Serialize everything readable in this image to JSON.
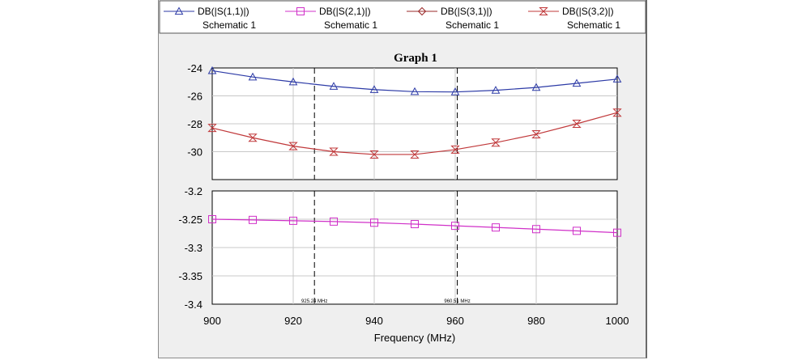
{
  "legend": [
    {
      "name": "DB(|S(1,1)|)",
      "sub": "Schematic 1",
      "color": "#2c3aa6",
      "marker": "triangle"
    },
    {
      "name": "DB(|S(2,1)|)",
      "sub": "Schematic 1",
      "color": "#d030c8",
      "marker": "square"
    },
    {
      "name": "DB(|S(3,1)|)",
      "sub": "Schematic 1",
      "color": "#9a2a2a",
      "marker": "diamond"
    },
    {
      "name": "DB(|S(3,2)|)",
      "sub": "Schematic 1",
      "color": "#c0383a",
      "marker": "hourglass"
    }
  ],
  "chart_data": [
    {
      "type": "line",
      "title": "Graph 1",
      "xlabel": "",
      "ylabel": "",
      "xlim": [
        900,
        1000
      ],
      "ylim": [
        -32,
        -24
      ],
      "xticks": [
        900,
        920,
        940,
        960,
        980,
        1000
      ],
      "yticks": [
        -24,
        -26,
        -28,
        -30,
        -32
      ],
      "ytick_labels": [
        "-24",
        "-26",
        "-28",
        "-30",
        ""
      ],
      "grid": true,
      "x": [
        900,
        910,
        920,
        930,
        940,
        950,
        960,
        970,
        980,
        990,
        1000
      ],
      "series": [
        {
          "name": "DB(|S(1,1)|)",
          "color": "#2c3aa6",
          "marker": "triangle",
          "values": [
            -24.2,
            -24.65,
            -25.0,
            -25.32,
            -25.55,
            -25.7,
            -25.72,
            -25.6,
            -25.4,
            -25.1,
            -24.8
          ]
        },
        {
          "name": "DB(|S(3,2)|)",
          "color": "#c0383a",
          "marker": "hourglass",
          "values": [
            -28.3,
            -29.0,
            -29.6,
            -30.0,
            -30.2,
            -30.2,
            -29.85,
            -29.35,
            -28.75,
            -28.0,
            -27.2
          ]
        }
      ],
      "markers": [
        {
          "x": 925.24,
          "label": "925.24 MHz"
        },
        {
          "x": 960.51,
          "label": "960.51 MHz"
        }
      ]
    },
    {
      "type": "line",
      "xlabel": "Frequency (MHz)",
      "ylabel": "",
      "xlim": [
        900,
        1000
      ],
      "ylim": [
        -3.4,
        -3.2
      ],
      "xticks": [
        900,
        920,
        940,
        960,
        980,
        1000
      ],
      "xtick_labels": [
        "900",
        "920",
        "940",
        "960",
        "980",
        "1000"
      ],
      "yticks": [
        -3.2,
        -3.25,
        -3.3,
        -3.35,
        -3.4
      ],
      "ytick_labels": [
        "-3.2",
        "-3.25",
        "-3.3",
        "-3.35",
        "-3.4"
      ],
      "grid": true,
      "x": [
        900,
        910,
        920,
        930,
        940,
        950,
        960,
        970,
        980,
        990,
        1000
      ],
      "series": [
        {
          "name": "DB(|S(2,1)|)",
          "color": "#d030c8",
          "marker": "square",
          "values": [
            -3.25,
            -3.2512,
            -3.2527,
            -3.2541,
            -3.2561,
            -3.2586,
            -3.2616,
            -3.2645,
            -3.2675,
            -3.2705,
            -3.2738
          ]
        }
      ],
      "markers": [
        {
          "x": 925.24,
          "label": "925.24 MHz"
        },
        {
          "x": 960.51,
          "label": "960.51 MHz"
        }
      ]
    }
  ]
}
